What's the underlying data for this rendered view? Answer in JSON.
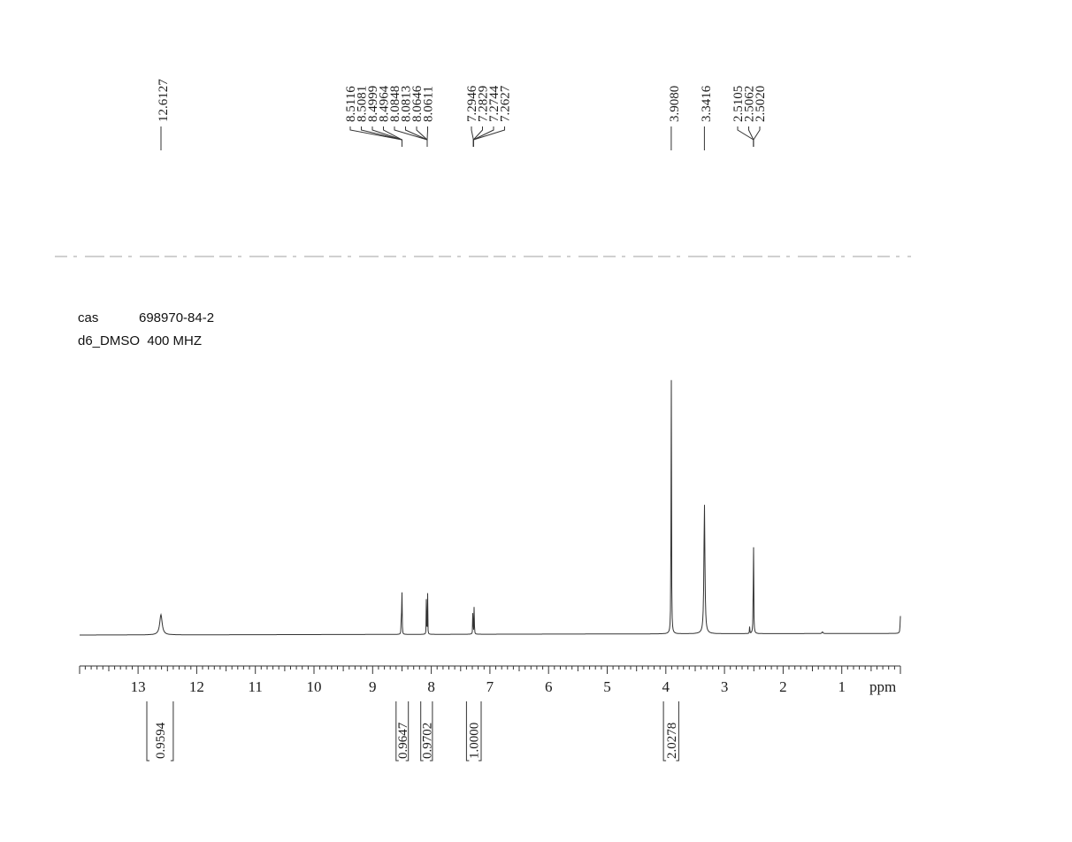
{
  "sample_info": {
    "cas_label": "cas",
    "cas_number": "698970-84-2",
    "solvent_line": "d6_DMSO  400 MHZ"
  },
  "chart_data": {
    "type": "line",
    "title": "",
    "xlabel": "ppm",
    "ylabel": "",
    "xlim": [
      13.9,
      0.0
    ],
    "x_reversed": true,
    "grid": false,
    "x_ticks": [
      13,
      12,
      11,
      10,
      9,
      8,
      7,
      6,
      5,
      4,
      3,
      2,
      1
    ],
    "x_tick_labels": [
      "13",
      "12",
      "11",
      "10",
      "9",
      "8",
      "7",
      "6",
      "5",
      "4",
      "3",
      "2",
      "1"
    ],
    "peak_labels": [
      "12.6127",
      "8.5116",
      "8.5081",
      "8.4999",
      "8.4964",
      "8.0848",
      "8.0813",
      "8.0646",
      "8.0611",
      "7.2946",
      "7.2829",
      "7.2744",
      "7.2627",
      "3.9080",
      "3.3416",
      "2.5105",
      "2.5062",
      "2.5020"
    ],
    "peak_groups": [
      {
        "label_indices": [
          0
        ],
        "center": 12.61
      },
      {
        "label_indices": [
          1,
          2,
          3,
          4
        ],
        "center": 8.5
      },
      {
        "label_indices": [
          5,
          6,
          7,
          8
        ],
        "center": 8.07
      },
      {
        "label_indices": [
          9,
          10,
          11,
          12
        ],
        "center": 7.28
      },
      {
        "label_indices": [
          13
        ],
        "center": 3.908
      },
      {
        "label_indices": [
          14
        ],
        "center": 3.342
      },
      {
        "label_indices": [
          15,
          16,
          17
        ],
        "center": 2.506
      }
    ],
    "peaks": [
      {
        "ppm": 12.61,
        "intensity": 0.07,
        "width": 0.025
      },
      {
        "ppm": 8.51,
        "intensity": 0.17,
        "width": 0.0025
      },
      {
        "ppm": 8.498,
        "intensity": 0.17,
        "width": 0.0025
      },
      {
        "ppm": 8.083,
        "intensity": 0.16,
        "width": 0.0025
      },
      {
        "ppm": 8.063,
        "intensity": 0.17,
        "width": 0.0025
      },
      {
        "ppm": 7.29,
        "intensity": 0.15,
        "width": 0.0025
      },
      {
        "ppm": 7.268,
        "intensity": 0.15,
        "width": 0.0025
      },
      {
        "ppm": 3.908,
        "intensity": 1.0,
        "width": 0.004
      },
      {
        "ppm": 3.342,
        "intensity": 0.45,
        "width": 0.01
      },
      {
        "ppm": 2.506,
        "intensity": 0.39,
        "width": 0.004
      },
      {
        "ppm": 2.57,
        "intensity": 0.03,
        "width": 0.003
      },
      {
        "ppm": 1.33,
        "intensity": 0.006,
        "width": 0.01
      },
      {
        "ppm": 0.0,
        "intensity": 0.06,
        "width": 0.006
      }
    ],
    "integrals": [
      {
        "from": 12.85,
        "to": 12.4,
        "value": "0.9594"
      },
      {
        "from": 8.6,
        "to": 8.39,
        "value": "0.9647"
      },
      {
        "from": 8.18,
        "to": 7.98,
        "value": "0.9702"
      },
      {
        "from": 7.4,
        "to": 7.15,
        "value": "1.0000"
      },
      {
        "from": 4.04,
        "to": 3.78,
        "value": "2.0278"
      }
    ]
  }
}
